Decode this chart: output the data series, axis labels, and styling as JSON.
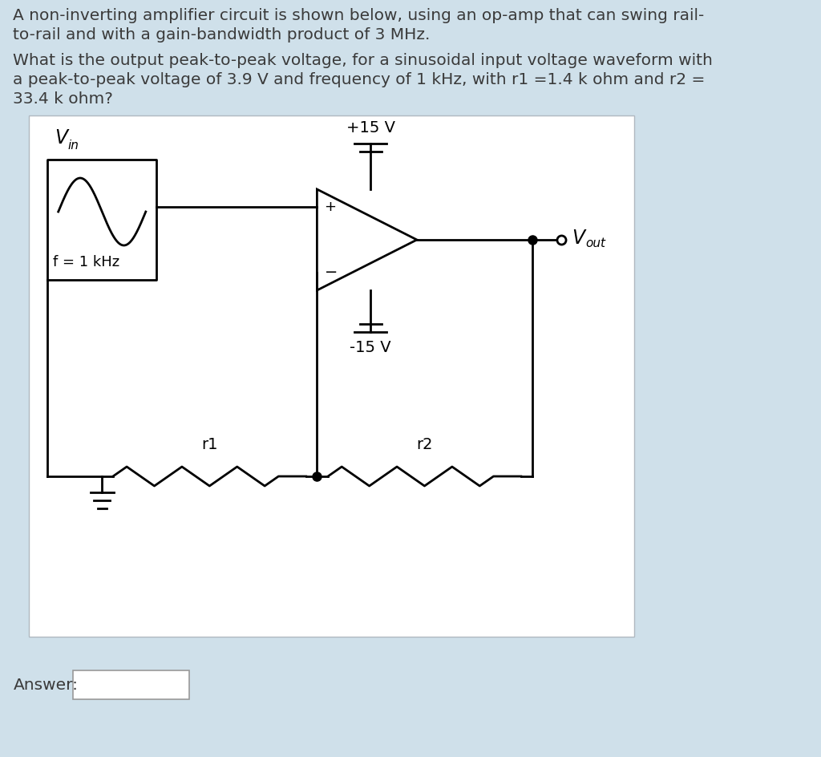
{
  "bg_color": "#cfe0ea",
  "circuit_bg": "#ffffff",
  "text_color": "#3a3a3a",
  "line_color": "#000000",
  "title_text1": "A non-inverting amplifier circuit is shown below, using an op-amp that can swing rail-",
  "title_text2": "to-rail and with a gain-bandwidth product of 3 MHz.",
  "question_text1": "What is the output peak-to-peak voltage, for a sinusoidal input voltage waveform with",
  "question_text2": "a peak-to-peak voltage of 3.9 V and frequency of 1 kHz, with r1 =1.4 k ohm and r2 =",
  "question_text3": "33.4 k ohm?",
  "answer_label": "Answer:",
  "vin_label": "V",
  "vin_sub": "in",
  "freq_label": "f = 1 kHz",
  "vout_label": "V",
  "vout_sub": "out",
  "vplus_label": "+15 V",
  "vminus_label": "-15 V",
  "r1_label": "r1",
  "r2_label": "r2",
  "plus_sign": "+",
  "minus_sign": "−",
  "font_size_body": 14.5,
  "font_size_circuit": 14
}
